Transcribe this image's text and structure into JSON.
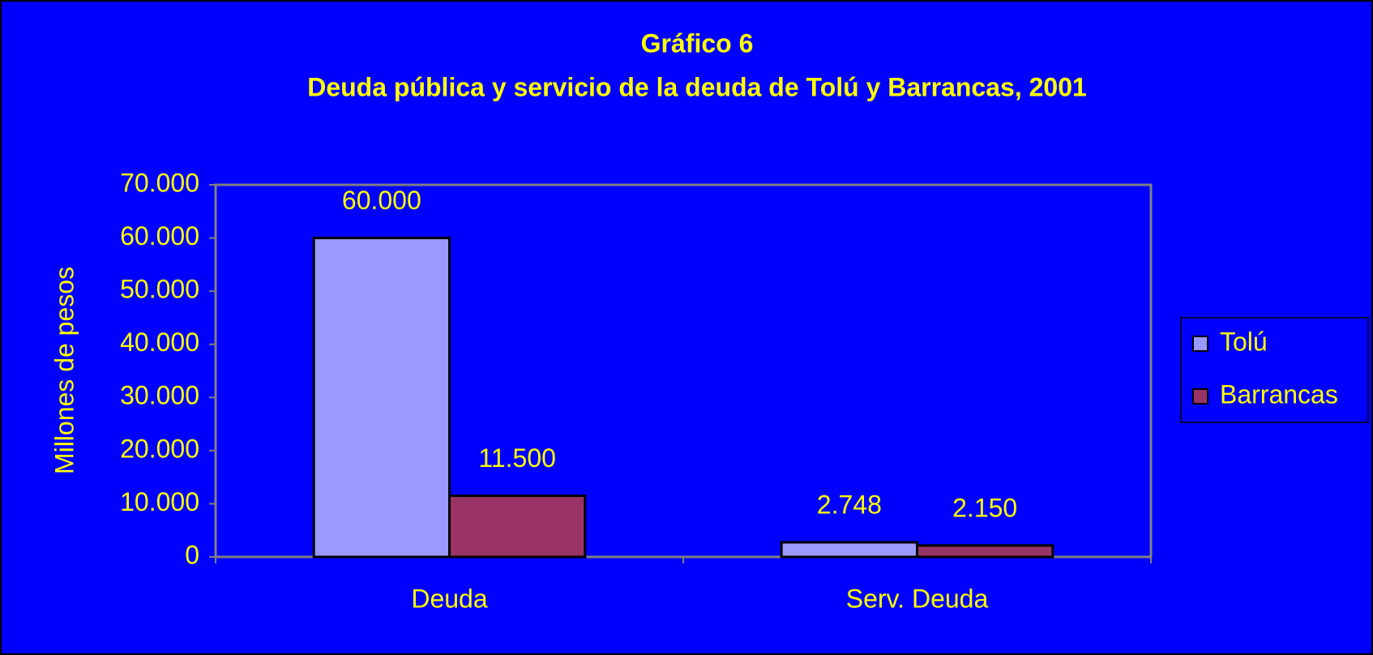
{
  "chart_data": {
    "type": "bar",
    "title": "Gráfico 6",
    "subtitle": "Deuda pública y servicio de la deuda de Tolú y Barrancas, 2001",
    "y_label": "Millones de pesos",
    "categories": [
      "Deuda",
      "Serv. Deuda"
    ],
    "series": [
      {
        "name": "Tolú",
        "color": "#9999ff",
        "values": [
          60000,
          2748
        ],
        "value_labels": [
          "60.000",
          "2.748"
        ]
      },
      {
        "name": "Barrancas",
        "color": "#993366",
        "values": [
          11500,
          2150
        ],
        "value_labels": [
          "11.500",
          "2.150"
        ]
      }
    ],
    "ylim": [
      0,
      70000
    ],
    "yticks": [
      0,
      {
        "value": 10000,
        "label": "10.000"
      },
      {
        "value": 20000,
        "label": "20.000"
      },
      {
        "value": 30000,
        "label": "30.000"
      },
      {
        "value": 40000,
        "label": "40.000"
      },
      {
        "value": 50000,
        "label": "50.000"
      },
      {
        "value": 60000,
        "label": "60.000"
      },
      {
        "value": 70000,
        "label": "70.000"
      }
    ],
    "legend": "right",
    "grid": false
  }
}
